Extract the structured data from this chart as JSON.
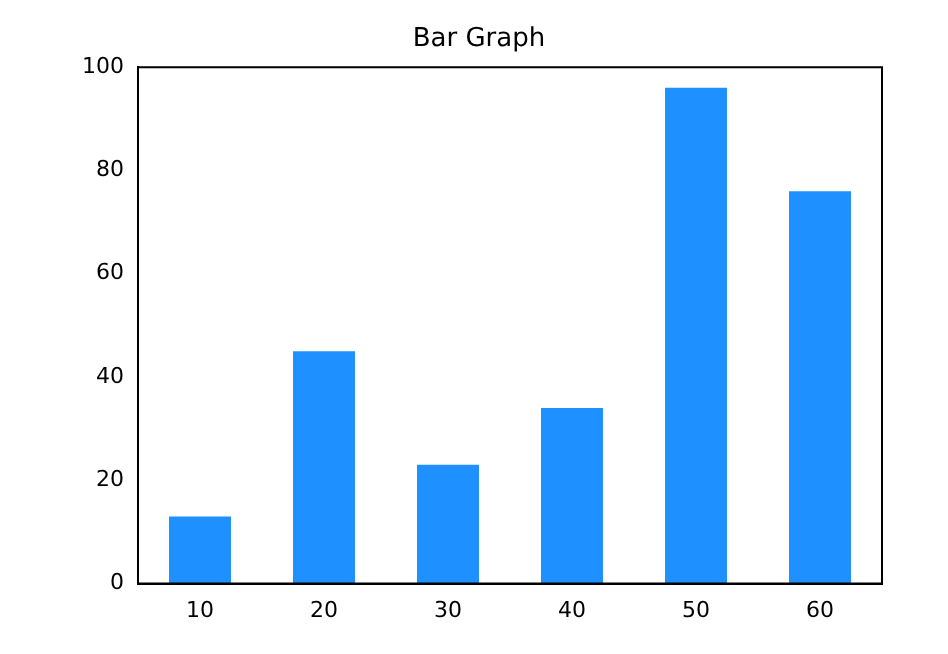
{
  "chart_data": {
    "type": "bar",
    "title": "Bar Graph",
    "categories": [
      "10",
      "20",
      "30",
      "40",
      "50",
      "60"
    ],
    "values": [
      13,
      45,
      23,
      34,
      96,
      76
    ],
    "color": "#1e90ff",
    "ylim": [
      0,
      100
    ],
    "yticks": [
      0,
      20,
      40,
      60,
      80,
      100
    ],
    "grid": false,
    "legend": false
  }
}
